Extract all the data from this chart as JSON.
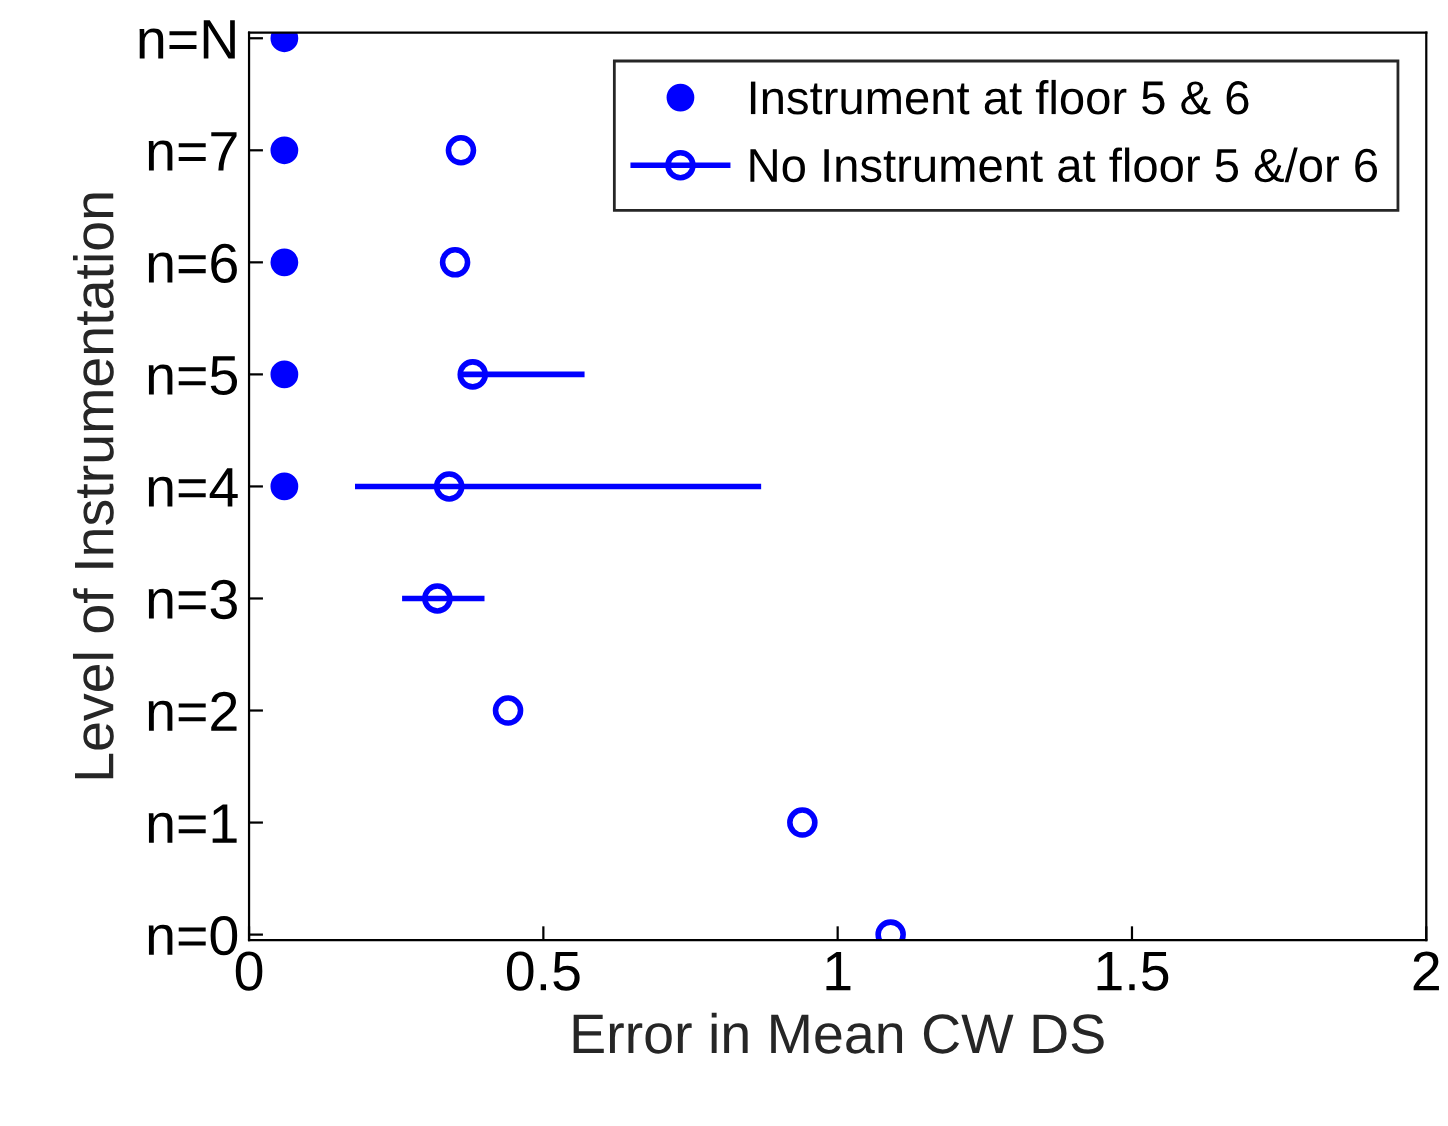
{
  "chart_data": {
    "type": "scatter",
    "orientation": "horizontal",
    "xlabel": "Error in Mean CW DS",
    "ylabel": "Level of Instrumentation",
    "categories": [
      "n=N",
      "n=7",
      "n=6",
      "n=5",
      "n=4",
      "n=3",
      "n=2",
      "n=1",
      "n=0"
    ],
    "series": [
      {
        "name": "Instrument at floor 5 & 6",
        "color": "#0000ff",
        "marker": "circle",
        "values": [
          0.06,
          0.06,
          0.06,
          0.06,
          0.06,
          null,
          null,
          null,
          null
        ]
      },
      {
        "name": "No Instrument at floor 5 &/or 6",
        "color": "#0000ff",
        "marker": "circle",
        "values": [
          null,
          0.36,
          0.35,
          0.38,
          0.34,
          0.32,
          0.44,
          0.94,
          1.09
        ],
        "errors": [
          null,
          null,
          null,
          [
            0.36,
            0.57
          ],
          [
            0.18,
            0.87
          ],
          [
            0.26,
            0.4
          ],
          null,
          null,
          null
        ]
      }
    ],
    "xlim": [
      0,
      2
    ],
    "xticks": [
      0,
      0.5,
      1,
      1.5,
      2
    ],
    "legend": "top right",
    "grid": false
  }
}
